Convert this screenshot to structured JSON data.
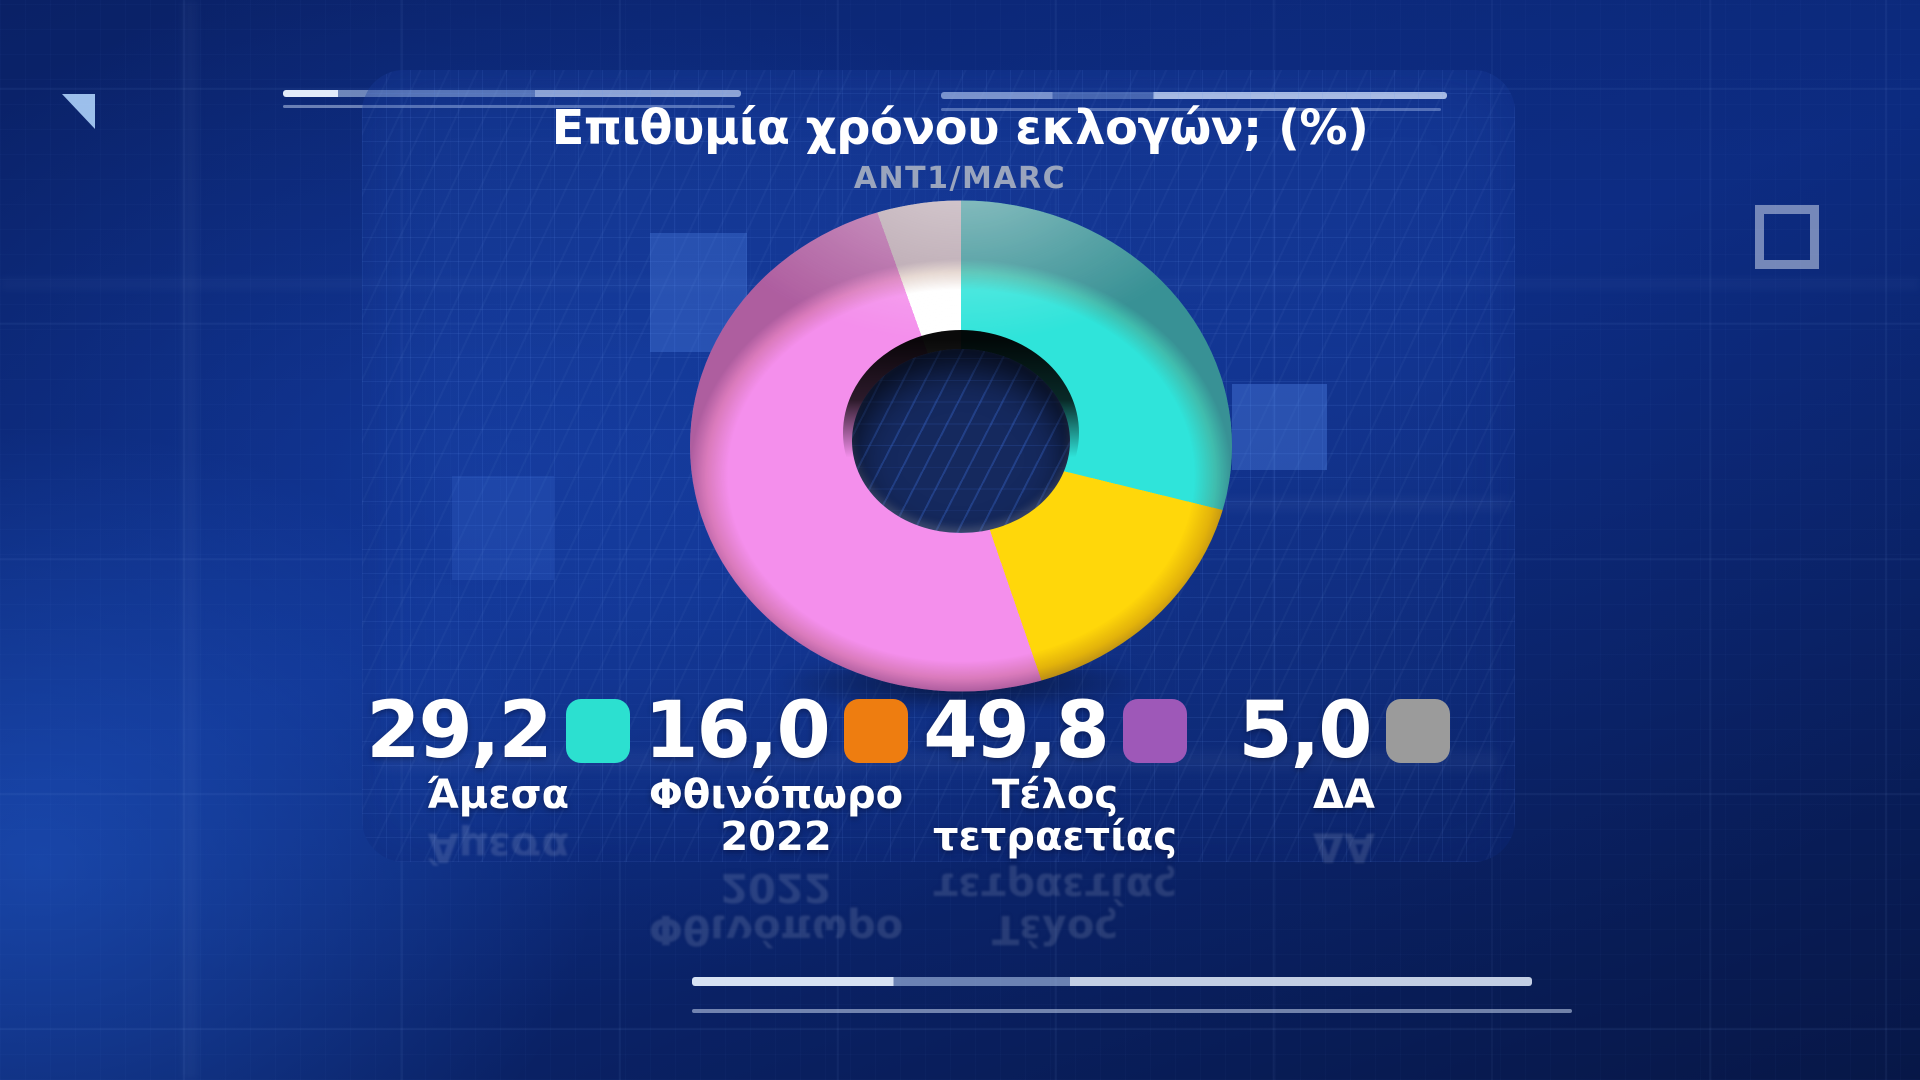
{
  "header": {
    "title": "Επιθυμία χρόνου εκλογών; (%)",
    "subtitle": "ANT1/MARC"
  },
  "chart_data": {
    "type": "pie",
    "donut": true,
    "title": "Επιθυμία χρόνου εκλογών; (%)",
    "subtitle": "ANT1/MARC",
    "unit": "%",
    "start_angle_deg": 0,
    "direction": "clockwise",
    "slices": [
      {
        "label": "Άμεσα",
        "value": 29.2,
        "display_value": "29,2",
        "pie_color": "#2fe4da",
        "legend_color": "#2ce0d0"
      },
      {
        "label": "Φθινόπωρο 2022",
        "value": 16.0,
        "display_value": "16,0",
        "pie_color": "#ffd70a",
        "legend_color": "#ee7d10"
      },
      {
        "label": "Τέλος τετραετίας",
        "value": 49.8,
        "display_value": "49,8",
        "pie_color": "#f48fec",
        "legend_color": "#9e58b8"
      },
      {
        "label": "ΔΑ",
        "value": 5.0,
        "display_value": "5,0",
        "pie_color": "#ffffff",
        "legend_color": "#9b9b9b"
      }
    ]
  },
  "legend": {
    "items": [
      {
        "value": "29,2",
        "label": "Άμεσα",
        "color": "#2ce0d0"
      },
      {
        "value": "16,0",
        "label": "Φθινόπωρο\n2022",
        "color": "#ee7d10"
      },
      {
        "value": "49,8",
        "label": "Τέλος\nτετραετίας",
        "color": "#9e58b8"
      },
      {
        "value": "5,0",
        "label": "ΔΑ",
        "color": "#9b9b9b"
      }
    ]
  }
}
